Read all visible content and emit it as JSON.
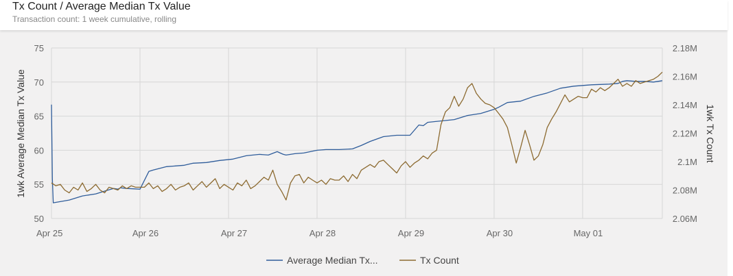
{
  "header": {
    "title": "Tx Count / Average Median Tx Value",
    "subtitle": "Transaction count: 1 week cumulative, rolling"
  },
  "chart_data": {
    "type": "line",
    "title": "Tx Count / Average Median Tx Value",
    "subtitle": "Transaction count: 1 week cumulative, rolling",
    "x_tick_labels": [
      "Apr 25",
      "Apr 26",
      "Apr 27",
      "Apr 28",
      "Apr 29",
      "Apr 30",
      "May 01"
    ],
    "x_range_days": [
      0,
      6.9
    ],
    "left_axis": {
      "label": "1wk Average Median Tx Value",
      "range": [
        50,
        75
      ],
      "ticks": [
        50,
        55,
        60,
        65,
        70,
        75
      ],
      "tick_labels": [
        "50",
        "55",
        "60",
        "65",
        "70",
        "75"
      ]
    },
    "right_axis": {
      "label": "1wk Tx Count",
      "range": [
        2060000,
        2180000
      ],
      "ticks": [
        2060000,
        2080000,
        2100000,
        2120000,
        2140000,
        2160000,
        2180000
      ],
      "tick_labels": [
        "2.06M",
        "2.08M",
        "2.1M",
        "2.12M",
        "2.14M",
        "2.16M",
        "2.18M"
      ]
    },
    "grid": true,
    "legend_position": "bottom-center",
    "series": [
      {
        "name": "Average Median Tx...",
        "axis": "left",
        "color": "#2e5c9a",
        "x": [
          0,
          0.01,
          0.02,
          0.2,
          0.35,
          0.5,
          0.62,
          0.7,
          0.75,
          0.78,
          0.85,
          1.0,
          1.1,
          1.15,
          1.3,
          1.5,
          1.6,
          1.75,
          1.9,
          2.05,
          2.2,
          2.35,
          2.45,
          2.55,
          2.6,
          2.62,
          2.65,
          2.75,
          2.85,
          3.0,
          3.1,
          3.25,
          3.4,
          3.5,
          3.6,
          3.75,
          3.9,
          4.05,
          4.15,
          4.2,
          4.25,
          4.4,
          4.55,
          4.7,
          4.85,
          5.0,
          5.05,
          5.15,
          5.3,
          5.45,
          5.6,
          5.75,
          5.85,
          5.9,
          6.1,
          6.3,
          6.4,
          6.45,
          6.5,
          6.6,
          6.7,
          6.8,
          6.9
        ],
        "values": [
          66.7,
          55.8,
          52.3,
          52.7,
          53.3,
          53.6,
          54.1,
          54.4,
          54.3,
          54.5,
          54.4,
          54.3,
          56.9,
          57.1,
          57.6,
          57.8,
          58.1,
          58.2,
          58.5,
          58.7,
          59.2,
          59.4,
          59.3,
          59.8,
          59.5,
          59.4,
          59.3,
          59.5,
          59.6,
          60.0,
          60.1,
          60.1,
          60.2,
          60.7,
          61.3,
          62.0,
          62.2,
          62.2,
          63.7,
          63.6,
          64.1,
          64.3,
          64.5,
          65.1,
          65.4,
          66.0,
          66.3,
          67.0,
          67.2,
          67.9,
          68.4,
          69.1,
          69.3,
          69.4,
          69.6,
          69.7,
          69.8,
          70.1,
          70.2,
          70.1,
          70.1,
          70.0,
          70.2
        ]
      },
      {
        "name": "Tx Count",
        "axis": "right",
        "color": "#8c6a30",
        "x": [
          0,
          0.05,
          0.1,
          0.15,
          0.2,
          0.25,
          0.3,
          0.35,
          0.4,
          0.45,
          0.5,
          0.55,
          0.6,
          0.65,
          0.7,
          0.75,
          0.8,
          0.85,
          0.9,
          0.95,
          1.0,
          1.05,
          1.1,
          1.15,
          1.2,
          1.25,
          1.3,
          1.35,
          1.4,
          1.45,
          1.5,
          1.55,
          1.6,
          1.65,
          1.7,
          1.75,
          1.8,
          1.85,
          1.9,
          1.95,
          2.0,
          2.05,
          2.1,
          2.15,
          2.2,
          2.25,
          2.3,
          2.35,
          2.4,
          2.45,
          2.5,
          2.55,
          2.6,
          2.65,
          2.7,
          2.75,
          2.8,
          2.85,
          2.9,
          2.95,
          3.0,
          3.05,
          3.1,
          3.15,
          3.2,
          3.25,
          3.3,
          3.35,
          3.4,
          3.45,
          3.5,
          3.55,
          3.6,
          3.65,
          3.7,
          3.75,
          3.8,
          3.85,
          3.9,
          3.95,
          4.0,
          4.05,
          4.1,
          4.15,
          4.2,
          4.25,
          4.3,
          4.35,
          4.4,
          4.45,
          4.5,
          4.55,
          4.6,
          4.65,
          4.7,
          4.75,
          4.8,
          4.85,
          4.9,
          4.95,
          5.0,
          5.05,
          5.1,
          5.15,
          5.2,
          5.25,
          5.3,
          5.35,
          5.4,
          5.45,
          5.5,
          5.55,
          5.6,
          5.65,
          5.7,
          5.75,
          5.8,
          5.85,
          5.9,
          5.95,
          6.0,
          6.05,
          6.1,
          6.15,
          6.2,
          6.25,
          6.3,
          6.35,
          6.4,
          6.45,
          6.5,
          6.55,
          6.6,
          6.65,
          6.7,
          6.75,
          6.8,
          6.85,
          6.9
        ],
        "values": [
          2085000,
          2083000,
          2084000,
          2080000,
          2078000,
          2082000,
          2080000,
          2085000,
          2079000,
          2081000,
          2084000,
          2080000,
          2078000,
          2082000,
          2081000,
          2080000,
          2083000,
          2081000,
          2083000,
          2082000,
          2082000,
          2082000,
          2085000,
          2081000,
          2083000,
          2079000,
          2081000,
          2084000,
          2080000,
          2082000,
          2083000,
          2085000,
          2080000,
          2083000,
          2086000,
          2082000,
          2085000,
          2088000,
          2081000,
          2084000,
          2082000,
          2080000,
          2085000,
          2083000,
          2087000,
          2081000,
          2083000,
          2086000,
          2089000,
          2087000,
          2094000,
          2084000,
          2079000,
          2073000,
          2085000,
          2090000,
          2091000,
          2085000,
          2089000,
          2087000,
          2085000,
          2087000,
          2084000,
          2088000,
          2087000,
          2087000,
          2090000,
          2086000,
          2091000,
          2088000,
          2094000,
          2096000,
          2098000,
          2096000,
          2100000,
          2101000,
          2098000,
          2095000,
          2092000,
          2097000,
          2100000,
          2096000,
          2099000,
          2101000,
          2104000,
          2102000,
          2106000,
          2108000,
          2126000,
          2135000,
          2138000,
          2146000,
          2139000,
          2144000,
          2152000,
          2155000,
          2148000,
          2144000,
          2141000,
          2140000,
          2138000,
          2134000,
          2130000,
          2124000,
          2112000,
          2099000,
          2110000,
          2122000,
          2112000,
          2101000,
          2104000,
          2112000,
          2124000,
          2130000,
          2135000,
          2141000,
          2147000,
          2142000,
          2144000,
          2146000,
          2145000,
          2145000,
          2151000,
          2149000,
          2152000,
          2150000,
          2152000,
          2155000,
          2158000,
          2153000,
          2155000,
          2153000,
          2157000,
          2155000,
          2156000,
          2157000,
          2158000,
          2160000,
          2163000
        ]
      }
    ]
  }
}
